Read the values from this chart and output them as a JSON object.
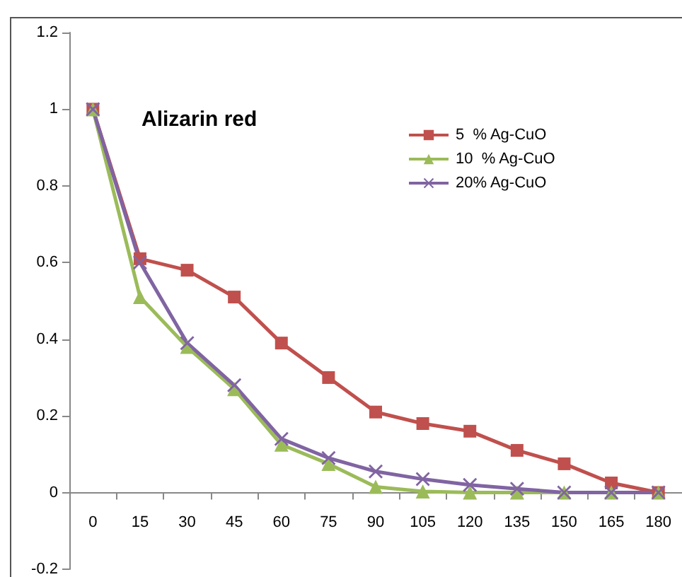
{
  "chart_data": {
    "type": "line",
    "title": "Alizarin red",
    "categories": [
      "0",
      "15",
      "30",
      "45",
      "60",
      "75",
      "90",
      "105",
      "120",
      "135",
      "150",
      "165",
      "180"
    ],
    "series": [
      {
        "name": "5  % Ag-CuO",
        "color": "#c0504d",
        "marker": "square",
        "values": [
          1,
          0.61,
          0.58,
          0.51,
          0.39,
          0.3,
          0.21,
          0.18,
          0.16,
          0.11,
          0.075,
          0.025,
          0
        ]
      },
      {
        "name": "10  % Ag-CuO",
        "color": "#9bbb59",
        "marker": "triangle",
        "values": [
          1,
          0.51,
          0.38,
          0.27,
          0.125,
          0.075,
          0.015,
          0.003,
          0,
          0,
          0,
          0,
          0
        ]
      },
      {
        "name": "20% Ag-CuO",
        "color": "#8064a2",
        "marker": "cross",
        "values": [
          1,
          0.6,
          0.39,
          0.28,
          0.14,
          0.09,
          0.055,
          0.035,
          0.02,
          0.01,
          0,
          0,
          0
        ]
      }
    ],
    "ylim": [
      -0.2,
      1.2
    ],
    "yticks": [
      -0.2,
      0,
      0.2,
      0.4,
      0.6,
      0.8,
      1,
      1.2
    ],
    "legend": "top right"
  }
}
